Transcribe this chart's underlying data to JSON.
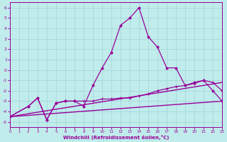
{
  "xlabel": "Windchill (Refroidissement éolien,°C)",
  "bg_color": "#c0ecec",
  "grid_color": "#a0d4d4",
  "line_color": "#990099",
  "xlim": [
    0,
    23
  ],
  "ylim": [
    -5.5,
    6.5
  ],
  "xticks": [
    0,
    1,
    2,
    3,
    4,
    5,
    6,
    7,
    8,
    9,
    10,
    11,
    12,
    13,
    14,
    15,
    16,
    17,
    18,
    19,
    20,
    21,
    22,
    23
  ],
  "yticks": [
    -5,
    -4,
    -3,
    -2,
    -1,
    0,
    1,
    2,
    3,
    4,
    5,
    6
  ],
  "series": [
    {
      "x": [
        0,
        23
      ],
      "y": [
        -4.5,
        -3.0
      ],
      "marker": null,
      "linewidth": 1.0
    },
    {
      "x": [
        0,
        23
      ],
      "y": [
        -4.5,
        -1.2
      ],
      "marker": null,
      "linewidth": 1.0
    },
    {
      "x": [
        0,
        2,
        3,
        4,
        5,
        6,
        7,
        8,
        9,
        10,
        11,
        12,
        13,
        14,
        15,
        16,
        17,
        18,
        19,
        20,
        21,
        22,
        23
      ],
      "y": [
        -4.5,
        -3.5,
        -2.7,
        -4.8,
        -3.2,
        -3.0,
        -3.0,
        -3.0,
        -3.0,
        -2.8,
        -2.8,
        -2.7,
        -2.7,
        -2.5,
        -2.3,
        -2.0,
        -1.8,
        -1.6,
        -1.5,
        -1.3,
        -1.0,
        -1.2,
        -2.0
      ],
      "marker": "+",
      "markersize": 3,
      "linewidth": 0.9
    },
    {
      "x": [
        0,
        2,
        3,
        4,
        5,
        6,
        7,
        8,
        9,
        10,
        11,
        12,
        13,
        14,
        15,
        16,
        17,
        18,
        19,
        20,
        21,
        22,
        23
      ],
      "y": [
        -4.5,
        -3.5,
        -2.7,
        -4.8,
        -3.2,
        -3.0,
        -3.0,
        -3.5,
        -1.5,
        0.2,
        1.7,
        4.3,
        5.0,
        6.0,
        3.2,
        2.2,
        0.2,
        0.2,
        -1.5,
        -1.2,
        -1.0,
        -2.0,
        -3.0
      ],
      "marker": ".",
      "markersize": 4,
      "linewidth": 0.9
    }
  ]
}
